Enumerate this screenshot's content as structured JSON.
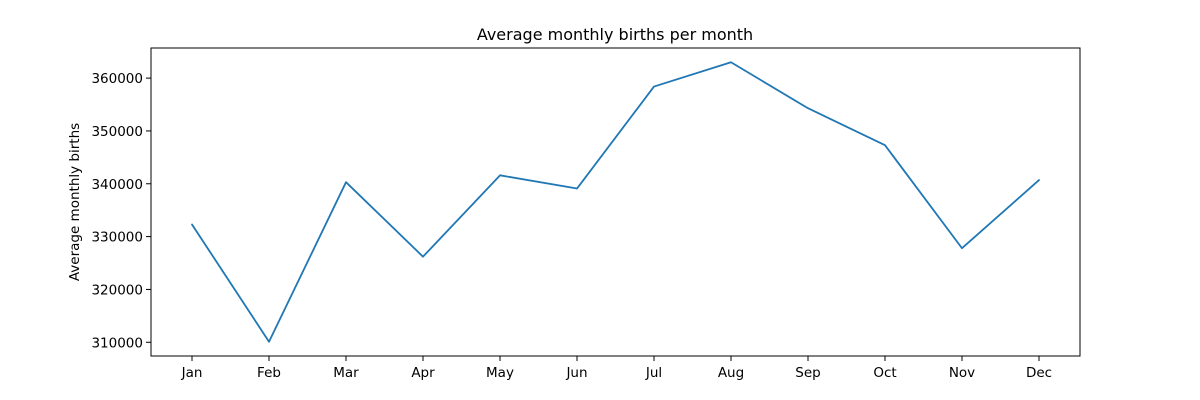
{
  "chart_data": {
    "type": "line",
    "title": "Average monthly births per month",
    "xlabel": "",
    "ylabel": "Average monthly births",
    "categories": [
      "Jan",
      "Feb",
      "Mar",
      "Apr",
      "May",
      "Jun",
      "Jul",
      "Aug",
      "Sep",
      "Oct",
      "Nov",
      "Dec"
    ],
    "series": [
      {
        "values": [
          332300,
          310100,
          340300,
          326200,
          341600,
          339100,
          358400,
          363000,
          354300,
          347300,
          327800,
          340700
        ],
        "color": "#1f77b4"
      }
    ],
    "yticks": [
      310000,
      320000,
      330000,
      340000,
      350000,
      360000
    ],
    "ylim": [
      307400,
      365700
    ],
    "grid": false,
    "legend": "none"
  }
}
